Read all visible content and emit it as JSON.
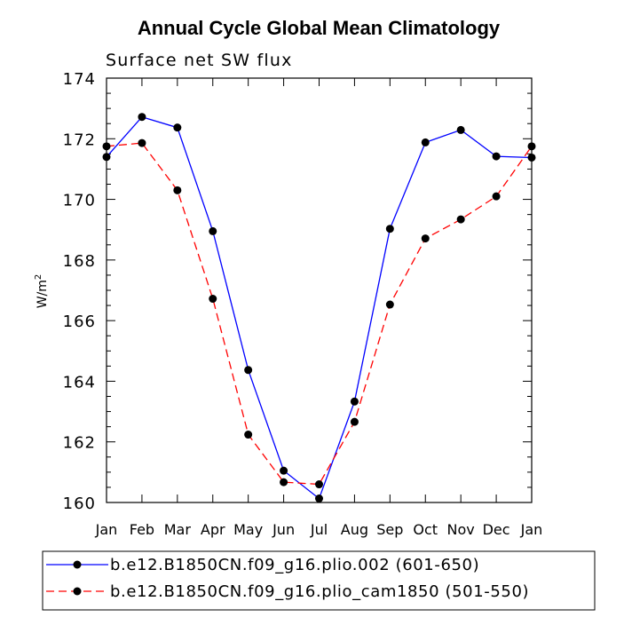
{
  "chart_data": {
    "type": "line",
    "title": "Annual Cycle Global Mean Climatology",
    "subtitle": "Surface net SW flux",
    "ylabel_base": "W/m",
    "ylabel_exp": "2",
    "xlabel": "",
    "categories": [
      "Jan",
      "Feb",
      "Mar",
      "Apr",
      "May",
      "Jun",
      "Jul",
      "Aug",
      "Sep",
      "Oct",
      "Nov",
      "Dec",
      "Jan"
    ],
    "ylim": [
      160,
      174
    ],
    "yticks": [
      160,
      162,
      164,
      166,
      168,
      170,
      172,
      174
    ],
    "series": [
      {
        "name": "b.e12.B1850CN.f09_g16.plio.002 (601-650)",
        "color": "#0000ff",
        "dash": "solid",
        "values": [
          171.4,
          172.72,
          172.37,
          168.95,
          164.37,
          161.05,
          160.13,
          163.33,
          169.03,
          171.88,
          172.29,
          171.42,
          171.38
        ]
      },
      {
        "name": "b.e12.B1850CN.f09_g16.plio_cam1850 (501-550)",
        "color": "#ff0000",
        "dash": "dashed",
        "values": [
          171.75,
          171.86,
          170.3,
          166.72,
          162.24,
          160.67,
          160.6,
          162.66,
          166.53,
          168.71,
          169.34,
          170.1,
          171.75
        ]
      }
    ],
    "legend_position": "bottom"
  }
}
